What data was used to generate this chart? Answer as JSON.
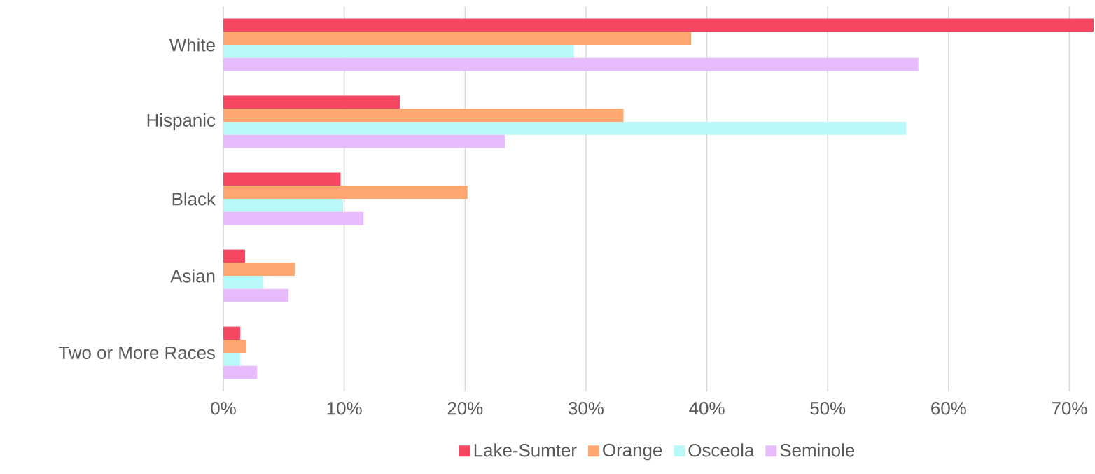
{
  "chart_data": {
    "type": "bar",
    "orientation": "horizontal",
    "categories": [
      "White",
      "Hispanic",
      "Black",
      "Asian",
      "Two or More Races"
    ],
    "series": [
      {
        "name": "Lake-Sumter",
        "color": "#f64662",
        "values": [
          72,
          14.6,
          9.7,
          1.8,
          1.4
        ]
      },
      {
        "name": "Orange",
        "color": "#ffa76f",
        "values": [
          38.7,
          33.1,
          20.2,
          5.9,
          1.9
        ]
      },
      {
        "name": "Osceola",
        "color": "#b8f8f9",
        "values": [
          29.0,
          56.5,
          9.9,
          3.3,
          1.4
        ]
      },
      {
        "name": "Seminole",
        "color": "#e8bcfc",
        "values": [
          57.5,
          23.3,
          11.6,
          5.4,
          2.8
        ]
      }
    ],
    "xlim": [
      0,
      72
    ],
    "xticks": [
      {
        "value": 0,
        "label": "0%"
      },
      {
        "value": 10,
        "label": "10%"
      },
      {
        "value": 20,
        "label": "20%"
      },
      {
        "value": 30,
        "label": "30%"
      },
      {
        "value": 40,
        "label": "40%"
      },
      {
        "value": 50,
        "label": "50%"
      },
      {
        "value": 60,
        "label": "60%"
      },
      {
        "value": 70,
        "label": "70%"
      }
    ],
    "grid": "x",
    "legend": "bottom"
  }
}
